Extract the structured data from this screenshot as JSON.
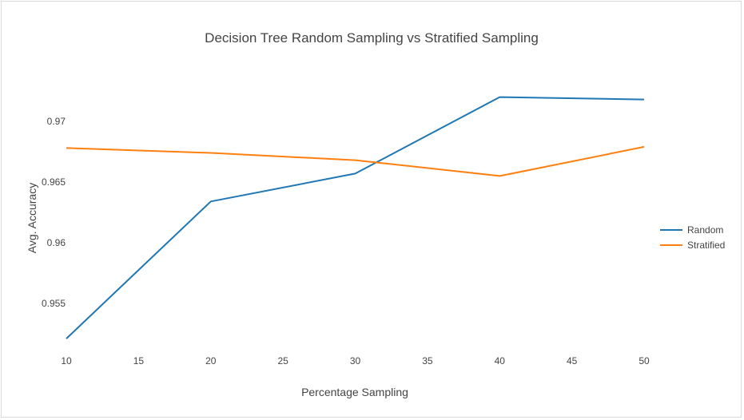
{
  "chart_data": {
    "type": "line",
    "title": "Decision Tree Random Sampling vs Stratified Sampling",
    "xlabel": "Percentage Sampling",
    "ylabel": "Avg. Accuracy",
    "x": [
      10,
      20,
      30,
      40,
      50
    ],
    "xlim": [
      10,
      50
    ],
    "ylim": [
      0.952,
      0.9725
    ],
    "xticks": [
      10,
      15,
      20,
      25,
      30,
      35,
      40,
      45,
      50
    ],
    "yticks": [
      0.955,
      0.96,
      0.965,
      0.97
    ],
    "xtick_labels": [
      "10",
      "15",
      "20",
      "25",
      "30",
      "35",
      "40",
      "45",
      "50"
    ],
    "ytick_labels": [
      "0.955",
      "0.96",
      "0.965",
      "0.97"
    ],
    "grid": false,
    "legend_position": "right",
    "series": [
      {
        "name": "Random",
        "color": "#1f77b4",
        "values": [
          0.9521,
          0.9634,
          0.9657,
          0.972,
          0.9718
        ]
      },
      {
        "name": "Stratified",
        "color": "#ff7f0e",
        "values": [
          0.9678,
          0.9674,
          0.9668,
          0.9655,
          0.9679
        ]
      }
    ]
  }
}
